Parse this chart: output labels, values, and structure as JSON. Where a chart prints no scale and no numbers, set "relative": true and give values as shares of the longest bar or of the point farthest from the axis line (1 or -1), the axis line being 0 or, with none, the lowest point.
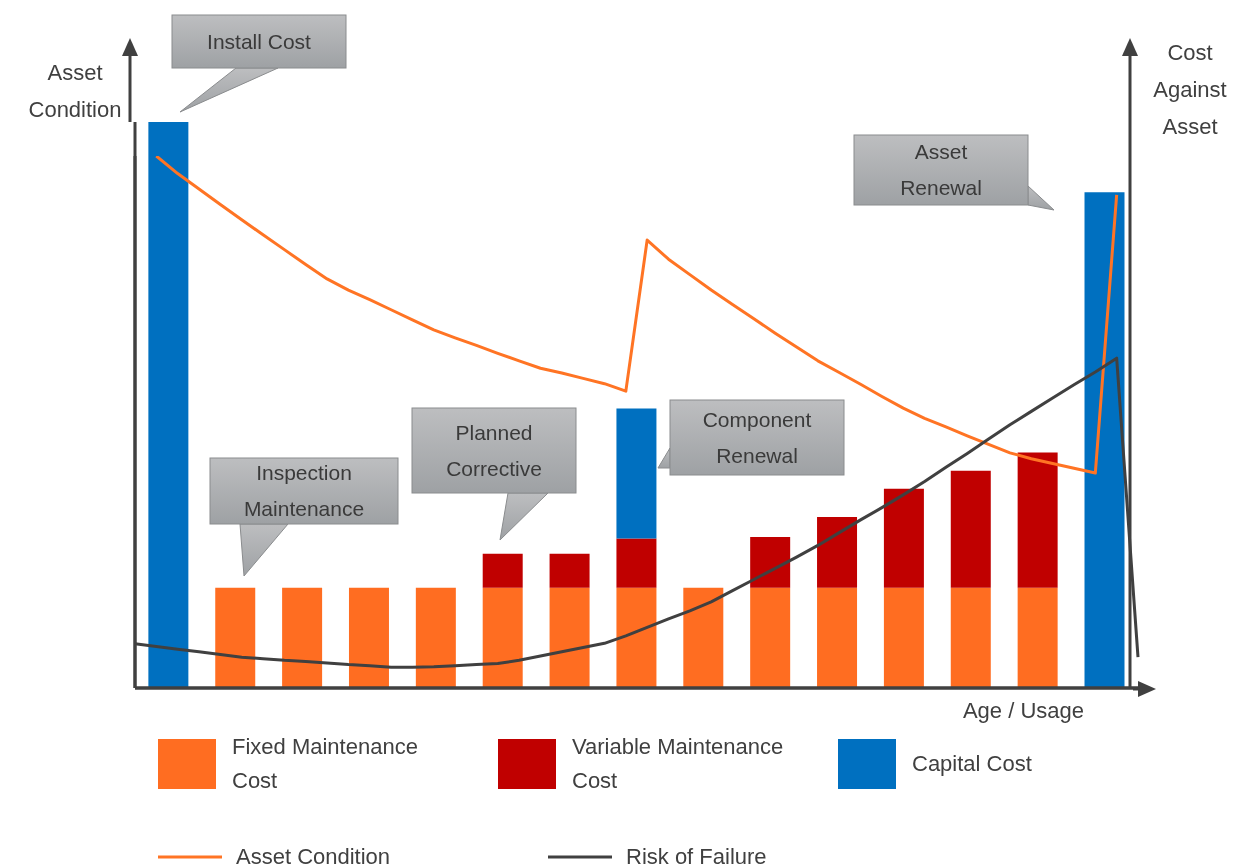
{
  "chart_data": [
    {
      "type": "bar",
      "relative": true,
      "stacked": true,
      "xlabel": "Age / Usage",
      "ylabel": "Asset Condition",
      "y2label": "Cost Against Asset",
      "legend": "bottom",
      "categories": [
        null,
        null,
        null,
        null,
        null,
        null,
        null,
        null,
        null,
        null,
        null,
        null,
        null,
        null,
        null
      ],
      "series": [
        {
          "name": "Fixed Maintenance Cost",
          "color": "#ff6d21",
          "values": [
            null,
            0.177,
            0.177,
            0.177,
            0.177,
            0.177,
            0.177,
            0.177,
            0.177,
            0.177,
            0.177,
            0.177,
            0.177,
            0.177,
            null
          ]
        },
        {
          "name": "Variable Maintenance Cost",
          "color": "#c00000",
          "values": [
            null,
            null,
            null,
            null,
            null,
            0.06,
            0.06,
            0.087,
            null,
            0.09,
            0.125,
            0.175,
            0.207,
            0.239,
            null
          ]
        },
        {
          "name": "Capital Cost",
          "color": "#0070c0",
          "values": [
            1,
            null,
            null,
            null,
            null,
            null,
            null,
            0.23,
            null,
            null,
            null,
            null,
            null,
            null,
            0.876
          ]
        }
      ],
      "annotations": [
        "Install Cost",
        "Inspection Maintenance",
        "Planned Corrective",
        "Component Renewal",
        "Asset Renewal"
      ]
    },
    {
      "type": "line",
      "relative": true,
      "legend": "bottom",
      "marker": "none",
      "categories": [
        null,
        null,
        null,
        null,
        null,
        null,
        null,
        null,
        null,
        null,
        null,
        null,
        null,
        null,
        null,
        null,
        null,
        null,
        null,
        null,
        null,
        null,
        null,
        null,
        null,
        null,
        null,
        null,
        null,
        null,
        null,
        null,
        null,
        null,
        null,
        null,
        null,
        null,
        null,
        null,
        null,
        null,
        null,
        null,
        null,
        null,
        null,
        null
      ],
      "series": [
        {
          "name": "Asset Condition",
          "color": "#ff7424",
          "values": [
            null,
            1,
            0.967,
            0.938,
            0.909,
            0.88,
            0.852,
            0.824,
            0.796,
            0.769,
            0.748,
            0.73,
            0.711,
            0.692,
            0.673,
            0.658,
            0.644,
            0.629,
            0.615,
            0.601,
            0.592,
            0.582,
            0.572,
            0.558,
            0.842,
            0.806,
            0.777,
            0.748,
            0.721,
            0.694,
            0.667,
            0.641,
            0.615,
            0.593,
            0.571,
            0.548,
            0.526,
            0.507,
            0.491,
            0.474,
            0.458,
            0.442,
            0.431,
            0.422,
            0.413,
            0.404,
            0.927,
            null
          ]
        },
        {
          "name": "Risk of Failure",
          "color": "#404040",
          "values": [
            0.083,
            0.078,
            0.073,
            0.068,
            0.063,
            0.058,
            0.055,
            0.052,
            0.05,
            0.047,
            0.044,
            0.042,
            0.039,
            0.039,
            0.04,
            0.042,
            0.044,
            0.046,
            0.052,
            0.06,
            0.068,
            0.076,
            0.084,
            0.098,
            0.114,
            0.13,
            0.145,
            0.162,
            0.183,
            0.204,
            0.225,
            0.246,
            0.268,
            0.292,
            0.316,
            0.339,
            0.363,
            0.388,
            0.415,
            0.441,
            0.468,
            0.495,
            0.52,
            0.545,
            0.57,
            0.594,
            0.62,
            0.058
          ]
        }
      ]
    }
  ]
}
